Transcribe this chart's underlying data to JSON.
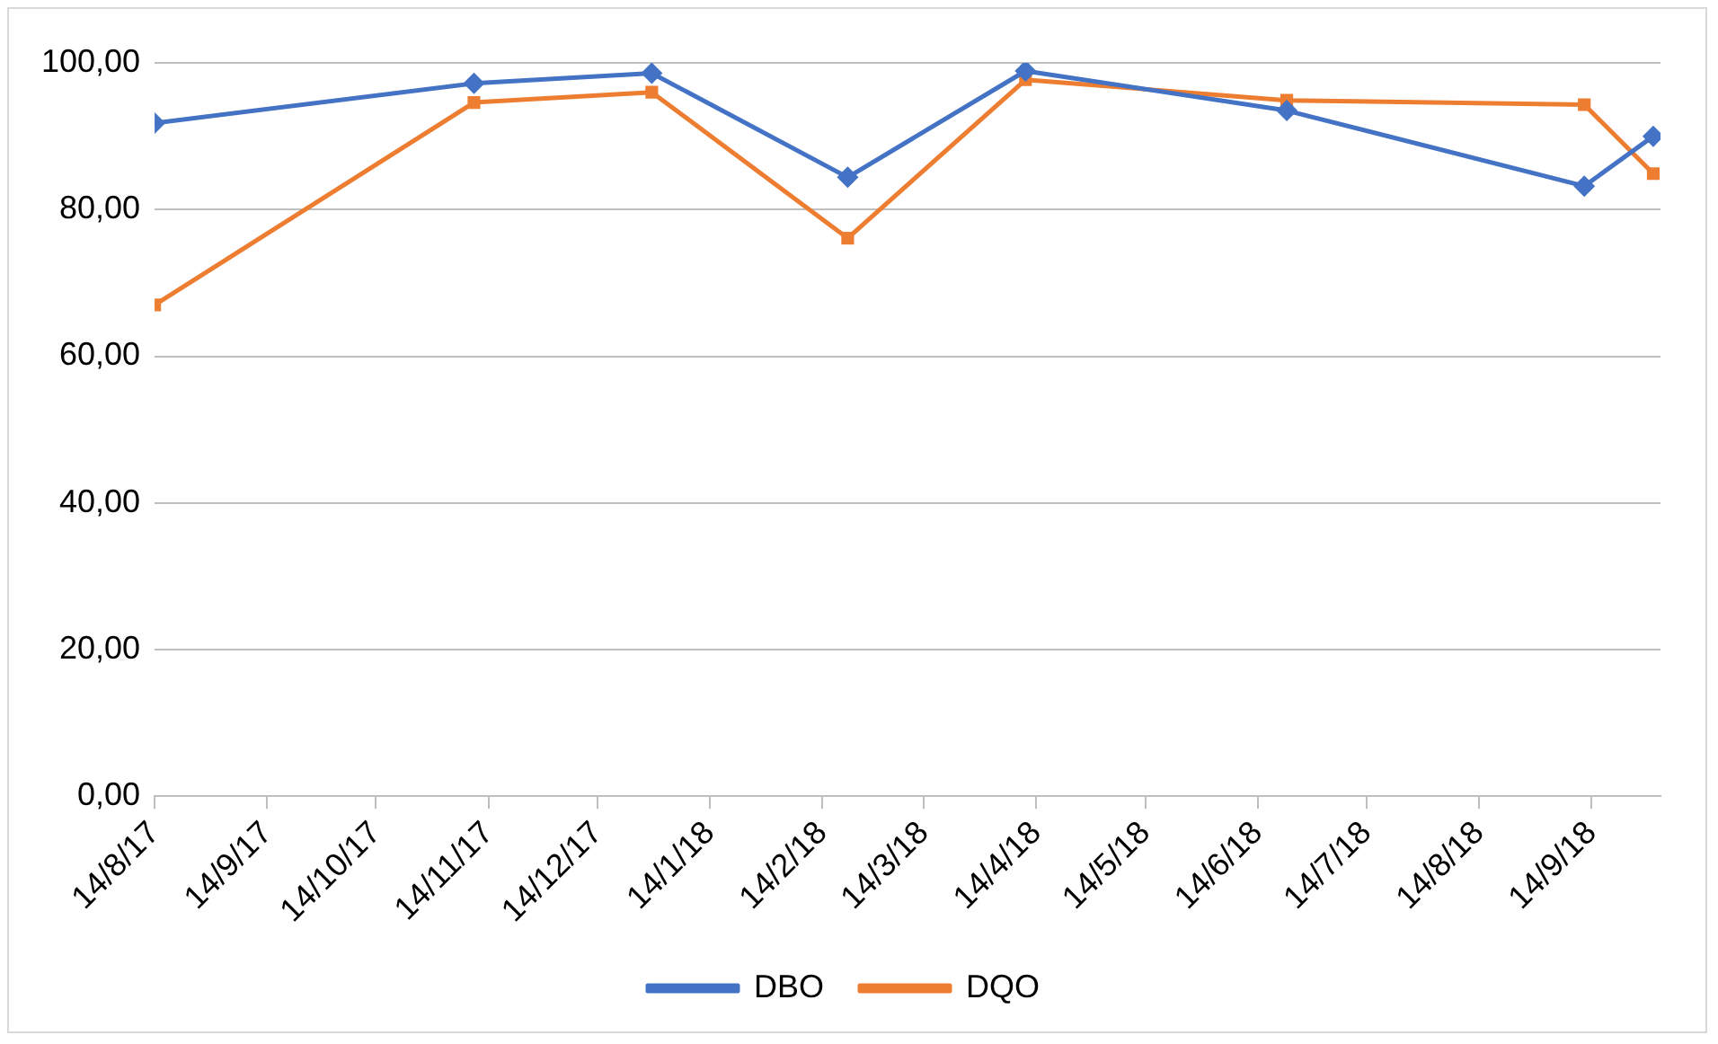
{
  "chart_data": {
    "type": "line",
    "x": [
      "2017-08-14",
      "2017-11-10",
      "2017-12-29",
      "2018-02-21",
      "2018-04-11",
      "2018-06-22",
      "2018-09-12",
      "2018-10-01"
    ],
    "series": [
      {
        "name": "DBO",
        "color": "#4472c4",
        "marker": "diamond",
        "values": [
          91.8,
          97.2,
          98.6,
          84.4,
          98.9,
          93.5,
          83.2,
          90.0
        ]
      },
      {
        "name": "DQO",
        "color": "#ed7d31",
        "marker": "square",
        "values": [
          67.0,
          94.6,
          96.0,
          76.1,
          97.7,
          94.9,
          94.3,
          84.9
        ]
      }
    ],
    "xlim": [
      "2017-08-14",
      "2018-10-03"
    ],
    "xticks": [
      {
        "value": "2017-08-14",
        "label": "14/8/17"
      },
      {
        "value": "2017-09-14",
        "label": "14/9/17"
      },
      {
        "value": "2017-10-14",
        "label": "14/10/17"
      },
      {
        "value": "2017-11-14",
        "label": "14/11/17"
      },
      {
        "value": "2017-12-14",
        "label": "14/12/17"
      },
      {
        "value": "2018-01-14",
        "label": "14/1/18"
      },
      {
        "value": "2018-02-14",
        "label": "14/2/18"
      },
      {
        "value": "2018-03-14",
        "label": "14/3/18"
      },
      {
        "value": "2018-04-14",
        "label": "14/4/18"
      },
      {
        "value": "2018-05-14",
        "label": "14/5/18"
      },
      {
        "value": "2018-06-14",
        "label": "14/6/18"
      },
      {
        "value": "2018-07-14",
        "label": "14/7/18"
      },
      {
        "value": "2018-08-14",
        "label": "14/8/18"
      },
      {
        "value": "2018-09-14",
        "label": "14/9/18"
      }
    ],
    "ylim": [
      0,
      100
    ],
    "yticks": [
      {
        "value": 0,
        "label": "0,00"
      },
      {
        "value": 20,
        "label": "20,00"
      },
      {
        "value": 40,
        "label": "40,00"
      },
      {
        "value": 60,
        "label": "60,00"
      },
      {
        "value": 80,
        "label": "80,00"
      },
      {
        "value": 100,
        "label": "100,00"
      }
    ],
    "grid": "y",
    "legend": "bottom",
    "line_style": "solid"
  }
}
